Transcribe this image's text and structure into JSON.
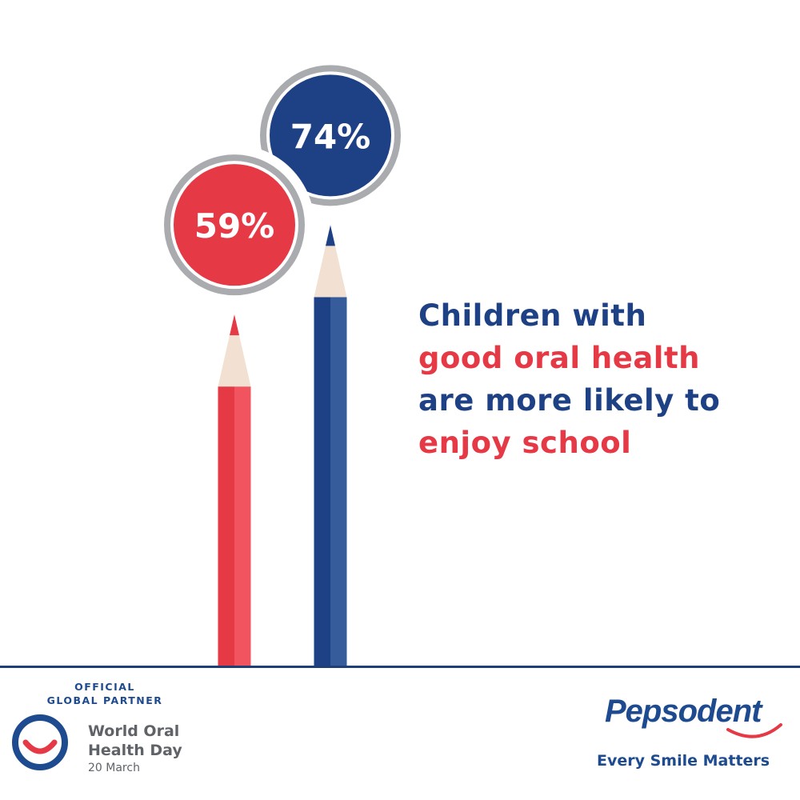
{
  "chart_data": {
    "type": "bar",
    "categories": [
      "",
      ""
    ],
    "values": [
      59,
      74
    ],
    "value_labels": [
      "59%",
      "74%"
    ],
    "title": "",
    "xlabel": "",
    "ylabel": "",
    "ylim": [
      0,
      100
    ],
    "grid": false,
    "legend": "none",
    "bar_style": "pencils",
    "colors": [
      "#e63946",
      "#1e4185"
    ]
  },
  "headline": {
    "line1": "Children with",
    "line2": "good oral health",
    "line3": "are more likely to",
    "line4": "enjoy school"
  },
  "partner": {
    "tag_line1": "OFFICIAL",
    "tag_line2": "GLOBAL PARTNER",
    "event_line1": "World Oral",
    "event_line2": "Health Day",
    "date": "20 March"
  },
  "brand": {
    "name": "Pepsodent",
    "tagline": "Every Smile Matters"
  },
  "colors": {
    "navy": "#1e4185",
    "red": "#e63946",
    "ring_grey": "#a9abae",
    "wood": "#f2e1d2",
    "footer_line": "#1e3f78"
  }
}
